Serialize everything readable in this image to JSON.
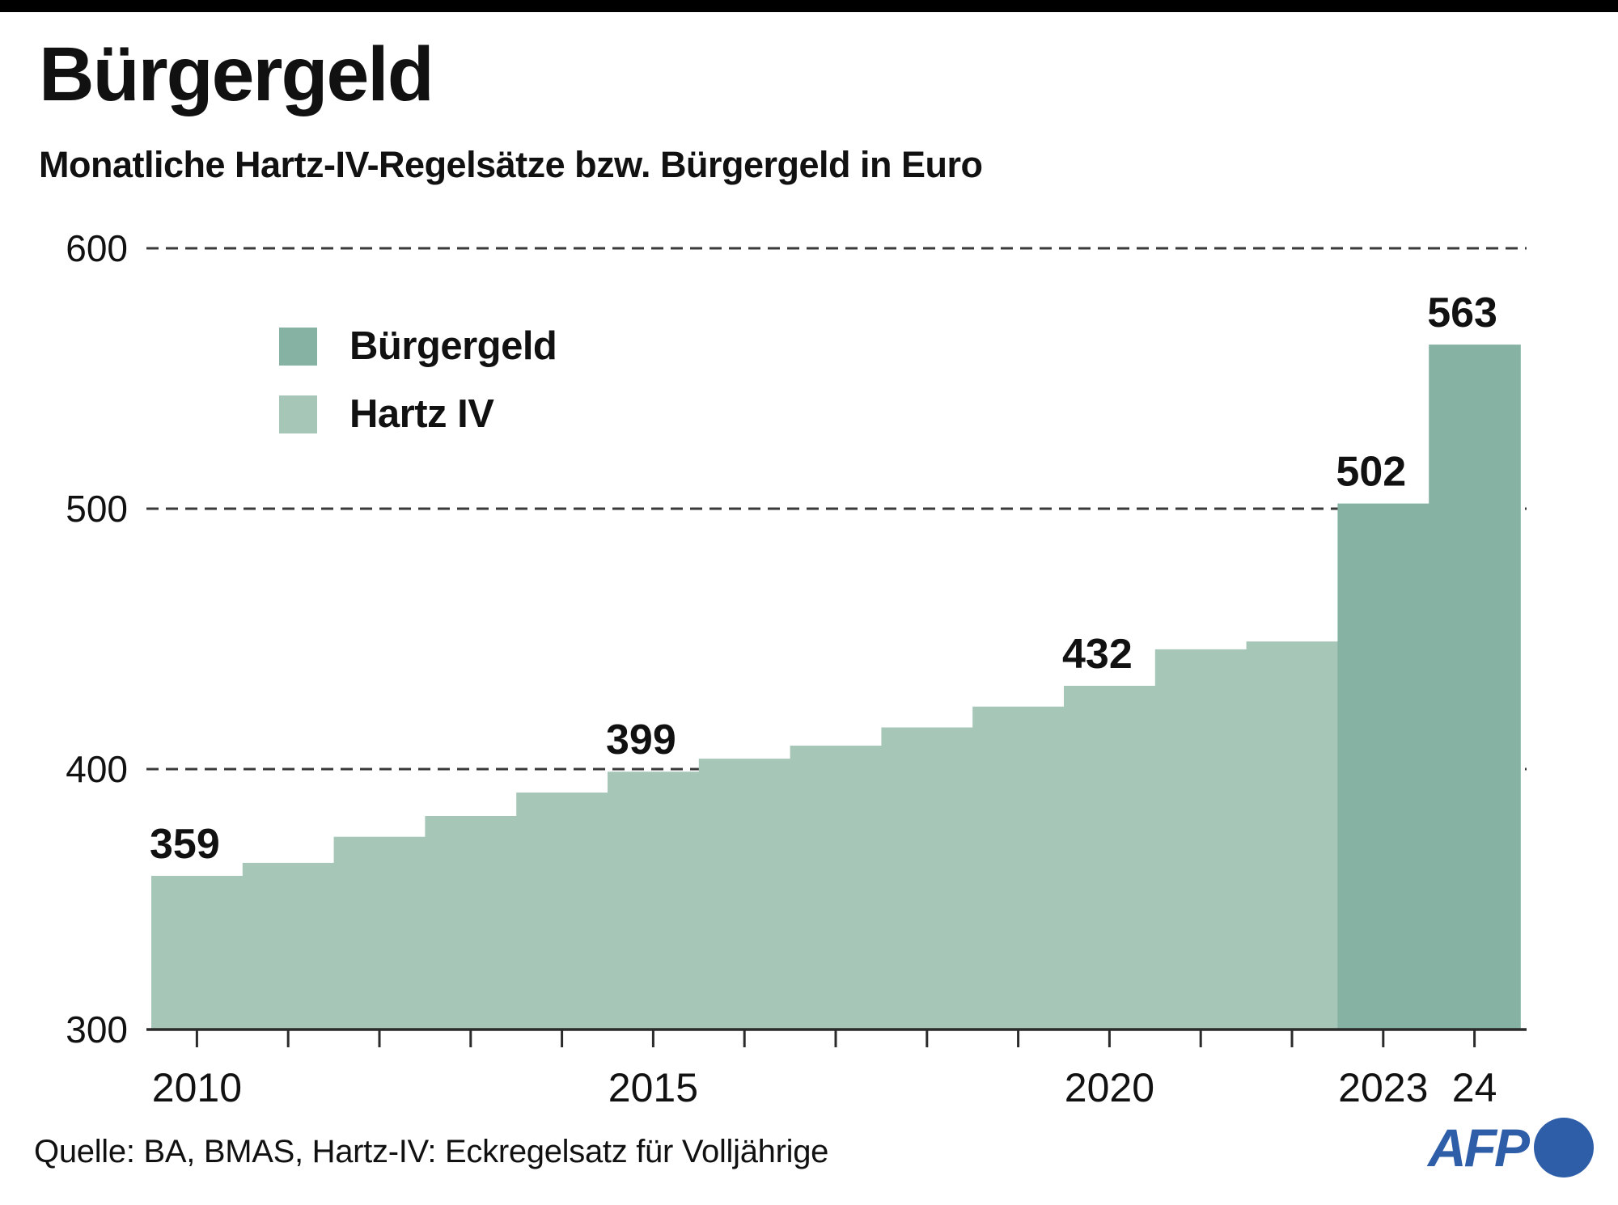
{
  "header": {
    "title": "Bürgergeld",
    "subtitle": "Monatliche Hartz-IV-Regelsätze bzw. Bürgergeld in Euro"
  },
  "legend": [
    {
      "label": "Bürgergeld",
      "color": "#86b2a3"
    },
    {
      "label": "Hartz IV",
      "color": "#a6c7b8"
    }
  ],
  "footer": {
    "source": "Quelle: BA, BMAS, Hartz-IV: Eckregelsatz für Volljährige",
    "logo_text": "AFP"
  },
  "colors": {
    "hartz_iv": "#a6c7b8",
    "buergergeld": "#86b2a3",
    "axis": "#2b2b2b",
    "gridline": "#3a3a3a",
    "text": "#111111",
    "afp_blue": "#2f5ea9",
    "topbar": "#000000"
  },
  "chart_data": {
    "type": "bar",
    "title": "Bürgergeld",
    "subtitle": "Monatliche Hartz-IV-Regelsätze bzw. Bürgergeld in Euro",
    "ylabel": "Euro",
    "ylim": [
      300,
      610
    ],
    "yticks": [
      300,
      400,
      500,
      600
    ],
    "grid": "horizontal-dashed",
    "legend_position": "upper-left",
    "series_colors": {
      "Hartz IV": "#a6c7b8",
      "Bürgergeld": "#86b2a3"
    },
    "points": [
      {
        "year": 2010,
        "value": 359,
        "series": "Hartz IV"
      },
      {
        "year": 2011,
        "value": 364,
        "series": "Hartz IV"
      },
      {
        "year": 2012,
        "value": 374,
        "series": "Hartz IV"
      },
      {
        "year": 2013,
        "value": 382,
        "series": "Hartz IV"
      },
      {
        "year": 2014,
        "value": 391,
        "series": "Hartz IV"
      },
      {
        "year": 2015,
        "value": 399,
        "series": "Hartz IV"
      },
      {
        "year": 2016,
        "value": 404,
        "series": "Hartz IV"
      },
      {
        "year": 2017,
        "value": 409,
        "series": "Hartz IV"
      },
      {
        "year": 2018,
        "value": 416,
        "series": "Hartz IV"
      },
      {
        "year": 2019,
        "value": 424,
        "series": "Hartz IV"
      },
      {
        "year": 2020,
        "value": 432,
        "series": "Hartz IV"
      },
      {
        "year": 2021,
        "value": 446,
        "series": "Hartz IV"
      },
      {
        "year": 2022,
        "value": 449,
        "series": "Hartz IV"
      },
      {
        "year": 2023,
        "value": 502,
        "series": "Bürgergeld"
      },
      {
        "year": 2024,
        "value": 563,
        "series": "Bürgergeld"
      }
    ],
    "x_axis_labels": [
      {
        "year": 2010,
        "label": "2010"
      },
      {
        "year": 2015,
        "label": "2015"
      },
      {
        "year": 2020,
        "label": "2020"
      },
      {
        "year": 2023,
        "label": "2023"
      },
      {
        "year": 2024,
        "label": "24"
      }
    ],
    "annotated_values": [
      {
        "year": 2010,
        "label": "359"
      },
      {
        "year": 2015,
        "label": "399"
      },
      {
        "year": 2020,
        "label": "432"
      },
      {
        "year": 2023,
        "label": "502"
      },
      {
        "year": 2024,
        "label": "563"
      }
    ]
  }
}
